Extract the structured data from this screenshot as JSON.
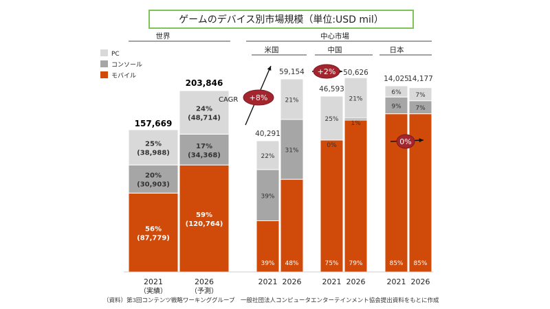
{
  "title": "ゲームのデバイス別市場規模（単位:USD mil）",
  "source": "（資料）第3回コンテンツ戦略ワーキンググループ　一般社団法人コンピュータエンターテインメント協会提出資料をもとに作成",
  "groups": {
    "world": "世界",
    "key_markets": "中心市場",
    "us": "米国",
    "china": "中国",
    "japan": "日本"
  },
  "colors": {
    "pc": "#d9d9d9",
    "console": "#a6a6a6",
    "mobile": "#d04a0a",
    "badge": "#a3262e",
    "title_border": "#7cc35a"
  },
  "chart_data": {
    "type": "bar",
    "stacked": true,
    "legend": [
      "PC",
      "コンソール",
      "モバイル"
    ],
    "legend_placement": "top-left",
    "panels": [
      {
        "market": "世界",
        "bars": [
          {
            "x": "2021",
            "sublabel": "（実績）",
            "total_label": "157,669",
            "segments": [
              {
                "series": "モバイル",
                "pct": 56,
                "label": "56%",
                "value_label": "(87,779)"
              },
              {
                "series": "コンソール",
                "pct": 20,
                "label": "20%",
                "value_label": "(30,903)"
              },
              {
                "series": "PC",
                "pct": 25,
                "label": "25%",
                "value_label": "(38,988)"
              }
            ]
          },
          {
            "x": "2026",
            "sublabel": "（予測）",
            "total_label": "203,846",
            "segments": [
              {
                "series": "モバイル",
                "pct": 59,
                "label": "59%",
                "value_label": "(120,764)"
              },
              {
                "series": "コンソール",
                "pct": 17,
                "label": "17%",
                "value_label": "(34,368)"
              },
              {
                "series": "PC",
                "pct": 24,
                "label": "24%",
                "value_label": "(48,714)"
              }
            ]
          }
        ]
      },
      {
        "market": "米国",
        "cagr": "+8%",
        "cagr_label": "CAGR",
        "bars": [
          {
            "x": "2021",
            "total_label": "40,291",
            "segments": [
              {
                "series": "モバイル",
                "pct": 39,
                "label": "39%"
              },
              {
                "series": "コンソール",
                "pct": 39,
                "label": "39%"
              },
              {
                "series": "PC",
                "pct": 22,
                "label": "22%"
              }
            ]
          },
          {
            "x": "2026",
            "total_label": "59,154",
            "segments": [
              {
                "series": "モバイル",
                "pct": 48,
                "label": "48%"
              },
              {
                "series": "コンソール",
                "pct": 31,
                "label": "31%"
              },
              {
                "series": "PC",
                "pct": 21,
                "label": "21%"
              }
            ]
          }
        ]
      },
      {
        "market": "中国",
        "cagr": "+2%",
        "bars": [
          {
            "x": "2021",
            "total_label": "46,593",
            "segments": [
              {
                "series": "モバイル",
                "pct": 75,
                "label": "75%"
              },
              {
                "series": "コンソール",
                "pct": 0,
                "label": "0%"
              },
              {
                "series": "PC",
                "pct": 25,
                "label": "25%"
              }
            ]
          },
          {
            "x": "2026",
            "total_label": "50,626",
            "segments": [
              {
                "series": "モバイル",
                "pct": 79,
                "label": "79%"
              },
              {
                "series": "コンソール",
                "pct": 1,
                "label": "1%"
              },
              {
                "series": "PC",
                "pct": 21,
                "label": "21%"
              }
            ]
          }
        ]
      },
      {
        "market": "日本",
        "cagr": "0%",
        "bars": [
          {
            "x": "2021",
            "total_label": "14,025",
            "segments": [
              {
                "series": "モバイル",
                "pct": 85,
                "label": "85%"
              },
              {
                "series": "コンソール",
                "pct": 9,
                "label": "9%"
              },
              {
                "series": "PC",
                "pct": 6,
                "label": "6%"
              }
            ]
          },
          {
            "x": "2026",
            "total_label": "14,177",
            "segments": [
              {
                "series": "モバイル",
                "pct": 85,
                "label": "85%"
              },
              {
                "series": "コンソール",
                "pct": 7,
                "label": "7%"
              },
              {
                "series": "PC",
                "pct": 7,
                "label": "7%"
              }
            ]
          }
        ]
      }
    ]
  }
}
